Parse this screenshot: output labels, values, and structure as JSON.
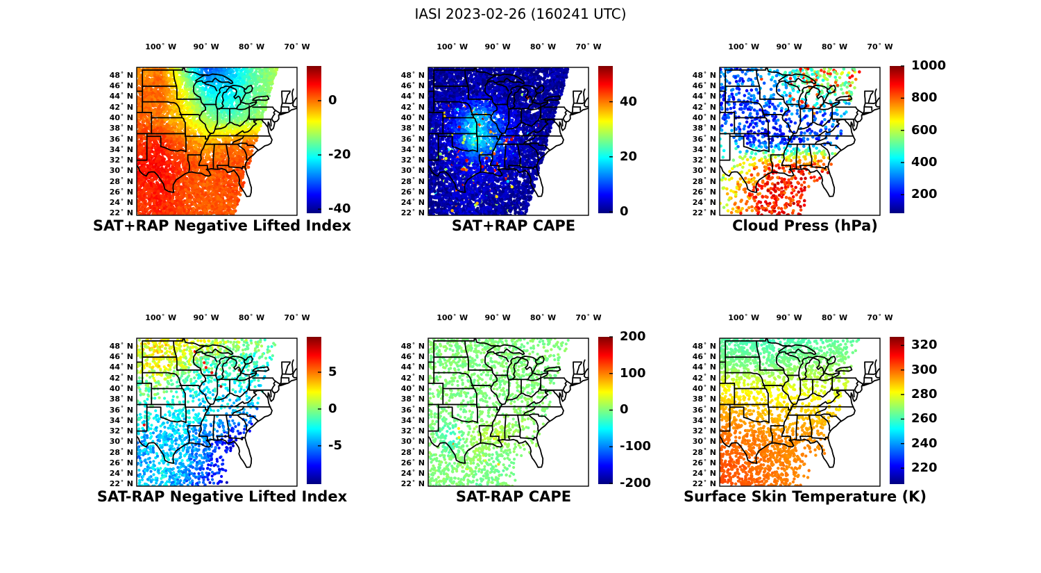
{
  "suptitle": "IASI 2023-02-26 (160241 UTC)",
  "axes": {
    "lon_tick_labels": [
      "100° W",
      "90° W",
      "80° W",
      "70° W"
    ],
    "lon_tick_values": [
      -100,
      -90,
      -80,
      -70
    ],
    "lat_tick_labels": [
      "48° N",
      "46° N",
      "44° N",
      "42° N",
      "40° N",
      "38° N",
      "36° N",
      "34° N",
      "32° N",
      "30° N",
      "28° N",
      "26° N",
      "24° N",
      "22° N"
    ],
    "lat_tick_values": [
      48,
      46,
      44,
      42,
      40,
      38,
      36,
      34,
      32,
      30,
      28,
      26,
      24,
      22
    ]
  },
  "map_view": {
    "lon_min": -105.3,
    "lon_max": -70,
    "lat_min": 21.6,
    "lat_max": 49.5,
    "swath_polygon": [
      [
        -104.3,
        49.5
      ],
      [
        -74.2,
        49.5
      ],
      [
        -83.8,
        21.6
      ],
      [
        -105.4,
        21.6
      ]
    ]
  },
  "field_grid": {
    "lons": [
      -105,
      -100,
      -95,
      -90,
      -85,
      -80,
      -75,
      -70
    ],
    "lats": [
      49,
      44.5,
      40,
      35.5,
      31,
      26.5,
      22
    ]
  },
  "colors": {
    "background": "#ffffff",
    "line": "#000000",
    "colormap": "jet"
  },
  "chart_data": [
    {
      "id": "sat_plus_rap_nli",
      "type": "scatter",
      "mode": "fill",
      "title": "SAT+RAP Negative Lifted Index",
      "colorbar": {
        "min": -41.5,
        "max": 12.8,
        "tick_labels": [
          "0",
          "-20",
          "-40"
        ],
        "tick_values": [
          0,
          -20,
          -40
        ]
      },
      "noise": 1.5,
      "n_dots": 9000,
      "dot_radius": 2.3,
      "seed": 11,
      "values": [
        [
          -2,
          0,
          -14,
          -30,
          -26,
          -17,
          -12,
          -12
        ],
        [
          0,
          1,
          -8,
          -20,
          -22,
          -16,
          -13,
          -13
        ],
        [
          1,
          -1,
          -6,
          -13,
          -17,
          -14,
          -12,
          -12
        ],
        [
          3,
          4,
          0,
          -4,
          -1,
          0,
          -1,
          -1
        ],
        [
          5,
          6,
          3,
          1,
          2,
          2,
          2,
          2
        ],
        [
          4,
          5,
          2,
          1,
          2,
          2,
          2,
          2
        ],
        [
          3,
          4,
          2,
          1,
          1,
          1,
          1,
          1
        ]
      ],
      "coverage": null,
      "speckle": null
    },
    {
      "id": "sat_plus_rap_cape",
      "type": "scatter",
      "mode": "fill",
      "title": "SAT+RAP CAPE",
      "colorbar": {
        "min": -0.5,
        "max": 53,
        "tick_labels": [
          "40",
          "20",
          "0"
        ],
        "tick_values": [
          40,
          20,
          0
        ]
      },
      "noise": 3,
      "n_dots": 9000,
      "dot_radius": 2.3,
      "seed": 22,
      "values": [
        [
          1,
          1,
          1,
          1,
          1,
          1,
          1,
          1
        ],
        [
          1,
          1,
          2,
          2,
          1,
          1,
          1,
          1
        ],
        [
          1,
          6,
          18,
          10,
          2,
          1,
          1,
          1
        ],
        [
          1,
          4,
          20,
          12,
          2,
          1,
          1,
          1
        ],
        [
          1,
          3,
          6,
          4,
          2,
          1,
          1,
          1
        ],
        [
          1,
          2,
          3,
          2,
          1,
          1,
          1,
          1
        ],
        [
          1,
          2,
          3,
          1,
          1,
          1,
          1,
          1
        ]
      ],
      "coverage": null,
      "speckle": {
        "value": 35,
        "noise": 18,
        "prob": [
          [
            0,
            0,
            0,
            0,
            0,
            0,
            0,
            0
          ],
          [
            0,
            0,
            0,
            0,
            0.02,
            0,
            0,
            0
          ],
          [
            0,
            0.05,
            0.12,
            0.06,
            0,
            0,
            0,
            0
          ],
          [
            0,
            0.1,
            0.15,
            0.08,
            0.04,
            0,
            0,
            0
          ],
          [
            0,
            0.08,
            0.1,
            0.06,
            0.05,
            0.02,
            0,
            0
          ],
          [
            0,
            0.02,
            0.06,
            0.04,
            0.01,
            0,
            0,
            0
          ],
          [
            0,
            0.02,
            0.06,
            0.02,
            0,
            0,
            0,
            0
          ]
        ]
      }
    },
    {
      "id": "cloud_press",
      "type": "scatter",
      "mode": "dots",
      "title": "Cloud Press (hPa)",
      "colorbar": {
        "min": 85,
        "max": 1000,
        "tick_labels": [
          "1000",
          "800",
          "600",
          "400",
          "200"
        ],
        "tick_values": [
          1000,
          800,
          600,
          400,
          200
        ]
      },
      "noise": 90,
      "n_dots": 2600,
      "dot_radius": 2.3,
      "seed": 33,
      "values": [
        [
          300,
          280,
          350,
          450,
          520,
          560,
          580,
          580
        ],
        [
          280,
          260,
          300,
          420,
          480,
          520,
          540,
          540
        ],
        [
          250,
          230,
          230,
          250,
          260,
          280,
          300,
          300
        ],
        [
          400,
          260,
          220,
          230,
          250,
          300,
          300,
          300
        ],
        [
          500,
          700,
          820,
          840,
          850,
          850,
          850,
          850
        ],
        [
          600,
          750,
          850,
          860,
          860,
          860,
          860,
          860
        ],
        [
          650,
          800,
          860,
          870,
          870,
          870,
          870,
          870
        ]
      ],
      "coverage": [
        [
          0.75,
          0.8,
          0.5,
          0.9,
          0.95,
          0.95,
          0.9,
          0.9
        ],
        [
          0.8,
          0.6,
          0.4,
          0.6,
          0.9,
          0.8,
          0.8,
          0
        ],
        [
          0.5,
          0.7,
          0.8,
          0.6,
          0.5,
          0.35,
          0,
          0
        ],
        [
          0.25,
          0.5,
          0.9,
          0.9,
          0.6,
          0.25,
          0,
          0
        ],
        [
          0.15,
          0.45,
          0.85,
          0.9,
          0.8,
          0,
          0,
          0
        ],
        [
          0.35,
          0.6,
          0.9,
          0.9,
          0,
          0,
          0,
          0
        ],
        [
          0.45,
          0.7,
          0.9,
          0.85,
          0,
          0,
          0,
          0
        ]
      ],
      "speckle": {
        "value": 830,
        "noise": 60,
        "prob": [
          [
            0,
            0,
            0.05,
            0.25,
            0.3,
            0.3,
            0.3,
            0.3
          ],
          [
            0,
            0,
            0.05,
            0.2,
            0.3,
            0.3,
            0.3,
            0.3
          ],
          [
            0,
            0,
            0,
            0,
            0,
            0,
            0,
            0
          ],
          [
            0,
            0,
            0,
            0,
            0,
            0,
            0,
            0
          ],
          [
            0,
            0,
            0,
            0,
            0,
            0,
            0,
            0
          ],
          [
            0,
            0,
            0,
            0,
            0,
            0,
            0,
            0
          ],
          [
            0,
            0,
            0,
            0,
            0,
            0,
            0,
            0
          ]
        ]
      }
    },
    {
      "id": "sat_minus_rap_nli",
      "type": "scatter",
      "mode": "dots",
      "title": "SAT-RAP Negative Lifted Index",
      "colorbar": {
        "min": -10.2,
        "max": 9.8,
        "tick_labels": [
          "5",
          "0",
          "-5"
        ],
        "tick_values": [
          5,
          0,
          -5
        ]
      },
      "noise": 1.5,
      "n_dots": 3800,
      "dot_radius": 2.1,
      "seed": 44,
      "values": [
        [
          2,
          2.5,
          2,
          1.5,
          1,
          0,
          -1,
          -2
        ],
        [
          1.5,
          2.5,
          1,
          -1,
          -1,
          -2,
          -2,
          -3
        ],
        [
          -1,
          0,
          -2,
          -3,
          -2,
          -3,
          -3,
          -3
        ],
        [
          -2,
          -2,
          -3,
          -3,
          -4,
          -5,
          -5,
          -5
        ],
        [
          -4,
          -4,
          -4,
          -5,
          -7,
          -8,
          -8,
          -8
        ],
        [
          -5,
          -3,
          -4,
          -6,
          -8,
          -8,
          -8,
          -8
        ],
        [
          -4,
          -3,
          -5,
          -7,
          -8,
          -8,
          -8,
          -8
        ]
      ],
      "coverage": [
        [
          0.95,
          0.95,
          0.9,
          0.9,
          0.85,
          0.6,
          0.5,
          0
        ],
        [
          0.9,
          0.95,
          0.9,
          0.85,
          0.8,
          0.7,
          0,
          0
        ],
        [
          0.7,
          0.4,
          0.5,
          0.6,
          0.45,
          0.5,
          0,
          0
        ],
        [
          0.5,
          0.25,
          0.55,
          0.35,
          0.3,
          0.5,
          0,
          0
        ],
        [
          0.8,
          0.85,
          0.9,
          0.9,
          0.8,
          0,
          0,
          0
        ],
        [
          0.9,
          0.9,
          0.95,
          0.9,
          0,
          0,
          0,
          0
        ],
        [
          0.9,
          0.9,
          0.9,
          0.8,
          0,
          0,
          0,
          0
        ]
      ],
      "speckle": {
        "value": 7,
        "noise": 2,
        "prob": [
          [
            0,
            0,
            0,
            0,
            0,
            0,
            0,
            0
          ],
          [
            0,
            0,
            0,
            0.03,
            0.04,
            0,
            0,
            0
          ],
          [
            0,
            0,
            0,
            0,
            0,
            0,
            0,
            0
          ],
          [
            0.03,
            0,
            0,
            0,
            0,
            0,
            0,
            0
          ],
          [
            0,
            0,
            0,
            0,
            0,
            0,
            0,
            0
          ],
          [
            0,
            0,
            0,
            0,
            0,
            0,
            0,
            0
          ],
          [
            0,
            0,
            0,
            0,
            0,
            0,
            0,
            0
          ]
        ]
      }
    },
    {
      "id": "sat_minus_rap_cape",
      "type": "scatter",
      "mode": "dots",
      "title": "SAT-RAP CAPE",
      "colorbar": {
        "min": -202,
        "max": 200,
        "tick_labels": [
          "200",
          "100",
          "0",
          "-100",
          "-200"
        ],
        "tick_values": [
          200,
          100,
          0,
          -100,
          -200
        ]
      },
      "noise": 10,
      "n_dots": 3400,
      "dot_radius": 2.1,
      "seed": 55,
      "values": [
        [
          0,
          0,
          0,
          0,
          0,
          0,
          0,
          0
        ],
        [
          0,
          0,
          0,
          0,
          0,
          0,
          0,
          0
        ],
        [
          0,
          0,
          0,
          0,
          0,
          0,
          0,
          0
        ],
        [
          0,
          0,
          0,
          0,
          8,
          0,
          0,
          0
        ],
        [
          0,
          -35,
          15,
          25,
          8,
          0,
          0,
          0
        ],
        [
          0,
          0,
          10,
          -15,
          0,
          0,
          0,
          0
        ],
        [
          0,
          0,
          -8,
          0,
          0,
          0,
          0,
          0
        ]
      ],
      "coverage": [
        [
          0.9,
          0.95,
          0.9,
          0.9,
          0.85,
          0.7,
          0.4,
          0
        ],
        [
          0.9,
          0.85,
          0.9,
          0.9,
          0.85,
          0.75,
          0,
          0
        ],
        [
          0.7,
          0.45,
          0.6,
          0.7,
          0.75,
          0.6,
          0,
          0
        ],
        [
          0.5,
          0.3,
          0.55,
          0.5,
          0.55,
          0.55,
          0,
          0
        ],
        [
          0.7,
          0.8,
          0.9,
          0.9,
          0.8,
          0,
          0,
          0
        ],
        [
          0.9,
          0.9,
          0.9,
          0.9,
          0,
          0,
          0,
          0
        ],
        [
          0.85,
          0.9,
          0.9,
          0.8,
          0,
          0,
          0,
          0
        ]
      ],
      "speckle": {
        "value": 70,
        "noise": 40,
        "prob": [
          [
            0,
            0,
            0,
            0,
            0,
            0,
            0,
            0
          ],
          [
            0,
            0,
            0,
            0,
            0,
            0,
            0,
            0
          ],
          [
            0,
            0,
            0,
            0,
            0,
            0,
            0,
            0
          ],
          [
            0,
            0,
            0,
            0,
            0,
            0,
            0,
            0
          ],
          [
            0,
            0.05,
            0.05,
            0.04,
            0,
            0,
            0,
            0
          ],
          [
            0,
            0.02,
            0.03,
            0.02,
            0,
            0,
            0,
            0
          ],
          [
            0,
            0,
            0,
            0,
            0,
            0,
            0,
            0
          ]
        ]
      }
    },
    {
      "id": "surface_skin_temperature",
      "type": "scatter",
      "mode": "dots",
      "title": "Surface Skin Temperature (K)",
      "colorbar": {
        "min": 207,
        "max": 327,
        "tick_labels": [
          "320",
          "300",
          "280",
          "260",
          "240",
          "220"
        ],
        "tick_values": [
          320,
          300,
          280,
          260,
          240,
          220
        ]
      },
      "noise": 2,
      "n_dots": 3800,
      "dot_radius": 2.2,
      "seed": 66,
      "values": [
        [
          262,
          261,
          260,
          261,
          262,
          263,
          263,
          263
        ],
        [
          268,
          267,
          266,
          267,
          269,
          269,
          269,
          269
        ],
        [
          283,
          281,
          280,
          279,
          278,
          277,
          277,
          277
        ],
        [
          293,
          291,
          289,
          288,
          288,
          287,
          287,
          287
        ],
        [
          299,
          298,
          296,
          295,
          294,
          294,
          294,
          294
        ],
        [
          302,
          300,
          298,
          296,
          296,
          296,
          296,
          296
        ],
        [
          304,
          302,
          299,
          297,
          297,
          297,
          297,
          297
        ]
      ],
      "coverage": [
        [
          0.95,
          0.95,
          0.85,
          0.95,
          0.9,
          0.7,
          0.5,
          0
        ],
        [
          0.95,
          0.95,
          0.9,
          0.9,
          0.9,
          0.8,
          0,
          0
        ],
        [
          0.9,
          0.6,
          0.7,
          0.6,
          0.5,
          0.5,
          0,
          0
        ],
        [
          0.9,
          0.6,
          0.6,
          0.5,
          0.65,
          0.5,
          0,
          0
        ],
        [
          0.95,
          0.9,
          0.9,
          0.9,
          0.8,
          0,
          0,
          0
        ],
        [
          0.95,
          0.95,
          0.95,
          0.9,
          0,
          0,
          0,
          0
        ],
        [
          0.9,
          0.9,
          0.9,
          0.8,
          0,
          0,
          0,
          0
        ]
      ],
      "speckle": null
    }
  ]
}
